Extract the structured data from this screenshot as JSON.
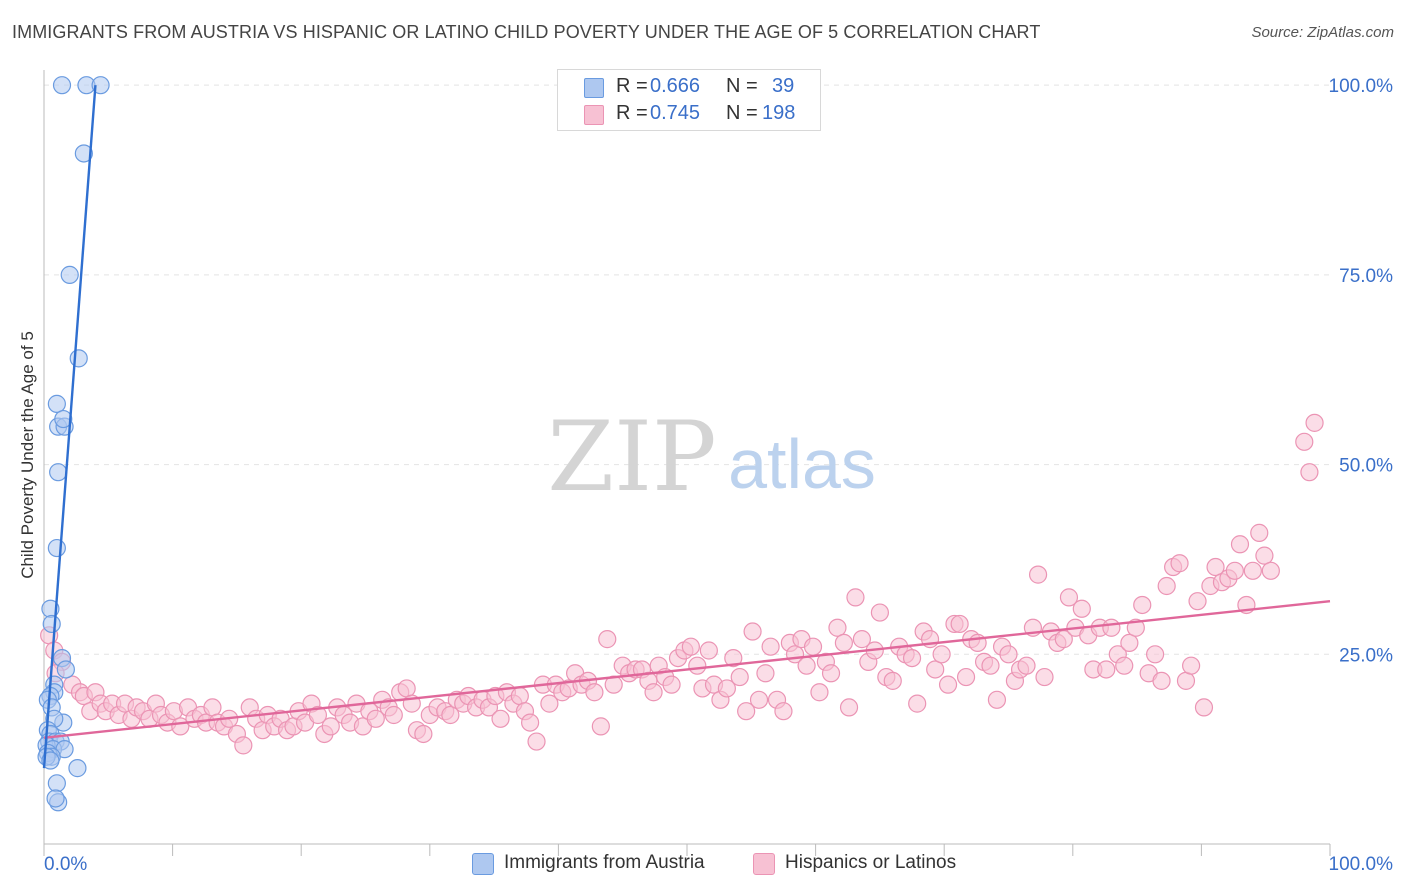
{
  "title": "IMMIGRANTS FROM AUSTRIA VS HISPANIC OR LATINO CHILD POVERTY UNDER THE AGE OF 5 CORRELATION CHART",
  "source": "Source: ZipAtlas.com",
  "watermark": {
    "zip": "ZIP",
    "atlas": "atlas"
  },
  "legend": {
    "rows": [
      {
        "r_label": "R =",
        "r_value": "0.666",
        "n_label": "N =",
        "n_value": "39"
      },
      {
        "r_label": "R =",
        "r_value": "0.745",
        "n_label": "N =",
        "n_value": "198"
      }
    ]
  },
  "bottom_legend": {
    "series1": "Immigrants from Austria",
    "series2": "Hispanics or Latinos"
  },
  "colors": {
    "blue_fill": "#aec8f0",
    "blue_stroke": "#6a9be0",
    "blue_line": "#2f6fd0",
    "pink_fill": "#f7c1d3",
    "pink_stroke": "#eb94b4",
    "pink_line": "#e0679a",
    "tick_label": "#3a6fc9",
    "grid": "#e4e4e4"
  },
  "chart_data": {
    "type": "scatter",
    "title": "IMMIGRANTS FROM AUSTRIA VS HISPANIC OR LATINO CHILD POVERTY UNDER THE AGE OF 5 CORRELATION CHART",
    "xlabel": "",
    "ylabel": "Child Poverty Under the Age of 5",
    "xlim": [
      0,
      100
    ],
    "ylim": [
      0,
      102
    ],
    "x_tick_labels": [
      "0.0%",
      "100.0%"
    ],
    "y_ticks": [
      25,
      50,
      75,
      100
    ],
    "y_tick_labels": [
      "25.0%",
      "50.0%",
      "75.0%",
      "100.0%"
    ],
    "grid": true,
    "legend_position": "top-center",
    "series": [
      {
        "name": "Immigrants from Austria",
        "r": 0.666,
        "n": 39,
        "trend": {
          "x": [
            0.0,
            4.0
          ],
          "y": [
            10.0,
            100.0
          ]
        },
        "points": [
          [
            1.4,
            100
          ],
          [
            3.3,
            100
          ],
          [
            4.4,
            100
          ],
          [
            3.1,
            91
          ],
          [
            2.0,
            75
          ],
          [
            2.7,
            64
          ],
          [
            1.0,
            58
          ],
          [
            1.1,
            55
          ],
          [
            1.6,
            55
          ],
          [
            1.5,
            56
          ],
          [
            1.1,
            49
          ],
          [
            1.0,
            39
          ],
          [
            0.5,
            31
          ],
          [
            0.6,
            29
          ],
          [
            1.4,
            24.5
          ],
          [
            1.7,
            23
          ],
          [
            0.8,
            21
          ],
          [
            0.8,
            20
          ],
          [
            0.5,
            19.5
          ],
          [
            0.3,
            19
          ],
          [
            0.6,
            18
          ],
          [
            1.5,
            16
          ],
          [
            0.8,
            16.5
          ],
          [
            0.3,
            15
          ],
          [
            0.5,
            14.5
          ],
          [
            0.4,
            13.5
          ],
          [
            0.9,
            13.5
          ],
          [
            1.3,
            13.5
          ],
          [
            0.2,
            13
          ],
          [
            0.7,
            12.5
          ],
          [
            1.6,
            12.5
          ],
          [
            0.3,
            12
          ],
          [
            0.6,
            11.5
          ],
          [
            0.2,
            11.5
          ],
          [
            0.5,
            11
          ],
          [
            2.6,
            10
          ],
          [
            1.0,
            8
          ],
          [
            1.1,
            5.5
          ],
          [
            0.9,
            6
          ]
        ]
      },
      {
        "name": "Hispanics or Latinos",
        "r": 0.745,
        "n": 198,
        "trend": {
          "x": [
            0.0,
            100.0
          ],
          "y": [
            14.0,
            32.0
          ]
        },
        "points": [
          [
            0.4,
            27.5
          ],
          [
            0.8,
            25.5
          ],
          [
            1.4,
            24
          ],
          [
            2.2,
            21
          ],
          [
            2.8,
            20
          ],
          [
            3.1,
            19.5
          ],
          [
            3.6,
            17.5
          ],
          [
            4.0,
            20
          ],
          [
            4.4,
            18.5
          ],
          [
            4.8,
            17.5
          ],
          [
            5.3,
            18.5
          ],
          [
            5.8,
            17
          ],
          [
            6.3,
            18.5
          ],
          [
            6.8,
            16.5
          ],
          [
            7.2,
            18
          ],
          [
            7.7,
            17.5
          ],
          [
            8.2,
            16.5
          ],
          [
            8.7,
            18.5
          ],
          [
            9.1,
            17
          ],
          [
            9.6,
            16
          ],
          [
            10.1,
            17.5
          ],
          [
            10.6,
            15.5
          ],
          [
            11.2,
            18
          ],
          [
            11.7,
            16.5
          ],
          [
            12.2,
            17
          ],
          [
            12.6,
            16
          ],
          [
            13.1,
            18
          ],
          [
            13.5,
            16
          ],
          [
            14.0,
            15.5
          ],
          [
            14.4,
            16.5
          ],
          [
            15.0,
            14.5
          ],
          [
            15.5,
            13
          ],
          [
            16.0,
            18
          ],
          [
            16.5,
            16.5
          ],
          [
            17.0,
            15
          ],
          [
            17.4,
            17
          ],
          [
            17.9,
            15.5
          ],
          [
            18.4,
            16.5
          ],
          [
            18.9,
            15
          ],
          [
            19.4,
            15.5
          ],
          [
            19.8,
            17.5
          ],
          [
            20.3,
            16
          ],
          [
            20.8,
            18.5
          ],
          [
            21.3,
            17
          ],
          [
            21.8,
            14.5
          ],
          [
            22.3,
            15.5
          ],
          [
            22.8,
            18
          ],
          [
            23.3,
            17
          ],
          [
            23.8,
            16
          ],
          [
            24.3,
            18.5
          ],
          [
            24.8,
            15.5
          ],
          [
            25.3,
            17.5
          ],
          [
            25.8,
            16.5
          ],
          [
            26.3,
            19
          ],
          [
            26.8,
            18
          ],
          [
            27.2,
            17
          ],
          [
            27.7,
            20
          ],
          [
            28.2,
            20.5
          ],
          [
            28.6,
            18.5
          ],
          [
            29.0,
            15
          ],
          [
            29.5,
            14.5
          ],
          [
            30.0,
            17
          ],
          [
            30.6,
            18
          ],
          [
            31.2,
            17.5
          ],
          [
            31.6,
            17
          ],
          [
            32.1,
            19
          ],
          [
            32.6,
            18.5
          ],
          [
            33.0,
            19.5
          ],
          [
            33.6,
            18
          ],
          [
            34.1,
            19
          ],
          [
            34.6,
            18
          ],
          [
            35.1,
            19.5
          ],
          [
            35.5,
            16.5
          ],
          [
            36.0,
            20
          ],
          [
            36.5,
            18.5
          ],
          [
            37.0,
            19.5
          ],
          [
            37.4,
            17.5
          ],
          [
            37.8,
            16
          ],
          [
            38.3,
            13.5
          ],
          [
            38.8,
            21
          ],
          [
            39.3,
            18.5
          ],
          [
            39.8,
            21
          ],
          [
            40.3,
            20
          ],
          [
            40.8,
            20.5
          ],
          [
            41.3,
            22.5
          ],
          [
            41.8,
            21
          ],
          [
            42.3,
            21.5
          ],
          [
            42.8,
            20
          ],
          [
            43.3,
            15.5
          ],
          [
            43.8,
            27
          ],
          [
            44.3,
            21
          ],
          [
            45.0,
            23.5
          ],
          [
            45.5,
            22.5
          ],
          [
            46.0,
            23
          ],
          [
            46.5,
            23
          ],
          [
            47.0,
            21.5
          ],
          [
            47.4,
            20
          ],
          [
            47.8,
            23.5
          ],
          [
            48.3,
            22
          ],
          [
            48.8,
            21
          ],
          [
            49.3,
            24.5
          ],
          [
            49.8,
            25.5
          ],
          [
            50.3,
            26
          ],
          [
            50.8,
            23.5
          ],
          [
            51.2,
            20.5
          ],
          [
            51.7,
            25.5
          ],
          [
            52.1,
            21
          ],
          [
            52.6,
            19
          ],
          [
            53.1,
            20.5
          ],
          [
            53.6,
            24.5
          ],
          [
            54.1,
            22
          ],
          [
            54.6,
            17.5
          ],
          [
            55.1,
            28
          ],
          [
            55.6,
            19
          ],
          [
            56.1,
            22.5
          ],
          [
            56.5,
            26
          ],
          [
            57.0,
            19
          ],
          [
            57.5,
            17.5
          ],
          [
            58.0,
            26.5
          ],
          [
            58.4,
            25
          ],
          [
            58.9,
            27
          ],
          [
            59.3,
            23.5
          ],
          [
            59.8,
            26
          ],
          [
            60.3,
            20
          ],
          [
            60.8,
            24
          ],
          [
            61.2,
            22.5
          ],
          [
            61.7,
            28.5
          ],
          [
            62.2,
            26.5
          ],
          [
            62.6,
            18
          ],
          [
            63.1,
            32.5
          ],
          [
            63.6,
            27
          ],
          [
            64.1,
            24
          ],
          [
            64.6,
            25.5
          ],
          [
            65.0,
            30.5
          ],
          [
            65.5,
            22
          ],
          [
            66.0,
            21.5
          ],
          [
            66.5,
            26
          ],
          [
            67.0,
            25
          ],
          [
            67.5,
            24.5
          ],
          [
            67.9,
            18.5
          ],
          [
            68.4,
            28
          ],
          [
            68.9,
            27
          ],
          [
            69.3,
            23
          ],
          [
            69.8,
            25
          ],
          [
            70.3,
            21
          ],
          [
            70.8,
            29
          ],
          [
            71.2,
            29
          ],
          [
            71.7,
            22
          ],
          [
            72.1,
            27
          ],
          [
            72.6,
            26.5
          ],
          [
            73.1,
            24
          ],
          [
            73.6,
            23.5
          ],
          [
            74.1,
            19
          ],
          [
            74.5,
            26
          ],
          [
            75.0,
            25
          ],
          [
            75.5,
            21.5
          ],
          [
            75.9,
            23
          ],
          [
            76.4,
            23.5
          ],
          [
            76.9,
            28.5
          ],
          [
            77.3,
            35.5
          ],
          [
            77.8,
            22
          ],
          [
            78.3,
            28
          ],
          [
            78.8,
            26.5
          ],
          [
            79.3,
            27
          ],
          [
            79.7,
            32.5
          ],
          [
            80.2,
            28.5
          ],
          [
            80.7,
            31
          ],
          [
            81.2,
            27.5
          ],
          [
            81.6,
            23
          ],
          [
            82.1,
            28.5
          ],
          [
            82.6,
            23
          ],
          [
            83.0,
            28.5
          ],
          [
            83.5,
            25
          ],
          [
            84.0,
            23.5
          ],
          [
            84.4,
            26.5
          ],
          [
            84.9,
            28.5
          ],
          [
            85.4,
            31.5
          ],
          [
            85.9,
            22.5
          ],
          [
            86.4,
            25
          ],
          [
            86.9,
            21.5
          ],
          [
            87.3,
            34
          ],
          [
            87.8,
            36.5
          ],
          [
            88.3,
            37
          ],
          [
            88.8,
            21.5
          ],
          [
            89.2,
            23.5
          ],
          [
            89.7,
            32
          ],
          [
            90.2,
            18
          ],
          [
            90.7,
            34
          ],
          [
            91.1,
            36.5
          ],
          [
            91.6,
            34.5
          ],
          [
            92.1,
            35
          ],
          [
            92.6,
            36
          ],
          [
            93.0,
            39.5
          ],
          [
            93.5,
            31.5
          ],
          [
            94.0,
            36
          ],
          [
            94.5,
            41
          ],
          [
            94.9,
            38
          ],
          [
            95.4,
            36
          ],
          [
            98.0,
            53
          ],
          [
            98.4,
            49
          ],
          [
            98.8,
            55.5
          ],
          [
            0.9,
            22.5
          ]
        ]
      }
    ]
  }
}
